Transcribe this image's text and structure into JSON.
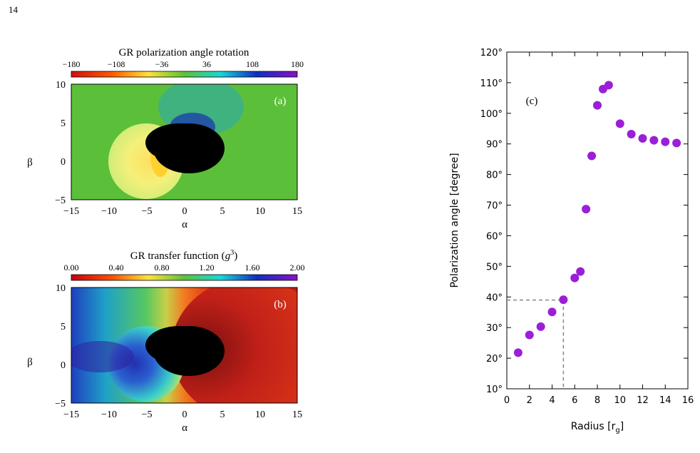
{
  "page_number": "14",
  "panel_a": {
    "colorbar_title": "GR polarization angle rotation",
    "colorbar_ticks": [
      "−180",
      "−108",
      "−36",
      "36",
      "108",
      "180"
    ],
    "panel_label": "(a)",
    "xlabel": "α",
    "ylabel": "β",
    "xticks": [
      "−15",
      "−10",
      "−5",
      "0",
      "5",
      "10",
      "15"
    ],
    "yticks": [
      "10",
      "5",
      "0",
      "−5"
    ]
  },
  "panel_b": {
    "colorbar_title_prefix": "GR transfer function (",
    "colorbar_title_var": "g",
    "colorbar_title_exp": "3",
    "colorbar_title_suffix": ")",
    "colorbar_ticks": [
      "0.00",
      "0.40",
      "0.80",
      "1.20",
      "1.60",
      "2.00"
    ],
    "panel_label": "(b)",
    "xlabel": "α",
    "ylabel": "β",
    "xticks": [
      "−15",
      "−10",
      "−5",
      "0",
      "5",
      "10",
      "15"
    ],
    "yticks": [
      "10",
      "5",
      "0",
      "−5"
    ]
  },
  "chart_data": {
    "type": "scatter",
    "panel_label": "(c)",
    "xlabel": "Radius [r",
    "xlabel_sub": "g",
    "xlabel_end": "]",
    "ylabel": "Polarization angle [degree]",
    "xlim": [
      0,
      16
    ],
    "ylim": [
      10,
      120
    ],
    "xticks": [
      "0",
      "2",
      "4",
      "6",
      "8",
      "10",
      "12",
      "14",
      "16"
    ],
    "yticks": [
      "10°",
      "20°",
      "30°",
      "40°",
      "50°",
      "60°",
      "70°",
      "80°",
      "90°",
      "100°",
      "110°",
      "120°"
    ],
    "marker_color": "#9b1fd8",
    "guide_point": {
      "x": 5,
      "y": 39
    },
    "x": [
      1,
      2,
      3,
      4,
      5,
      6,
      6.5,
      7,
      7.5,
      8,
      8.5,
      9,
      10,
      11,
      12,
      13,
      14,
      15
    ],
    "y": [
      21.8,
      27.6,
      30.3,
      35.1,
      39.1,
      46.2,
      48.3,
      68.7,
      86.1,
      102.6,
      107.9,
      109.2,
      96.6,
      93.2,
      91.8,
      91.2,
      90.7,
      90.3
    ]
  }
}
